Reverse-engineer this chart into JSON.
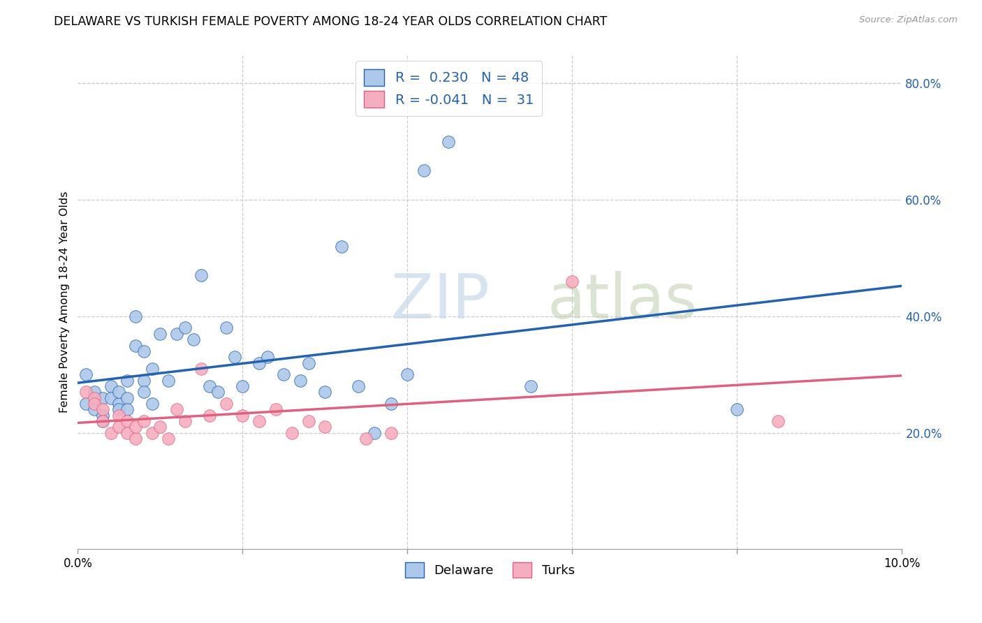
{
  "title": "DELAWARE VS TURKISH FEMALE POVERTY AMONG 18-24 YEAR OLDS CORRELATION CHART",
  "source": "Source: ZipAtlas.com",
  "ylabel": "Female Poverty Among 18-24 Year Olds",
  "xlim": [
    0.0,
    0.1
  ],
  "ylim": [
    0.0,
    0.85
  ],
  "y_ticks_right": [
    0.2,
    0.4,
    0.6,
    0.8
  ],
  "y_tick_labels_right": [
    "20.0%",
    "40.0%",
    "60.0%",
    "80.0%"
  ],
  "legend_r_delaware": "0.230",
  "legend_n_delaware": "48",
  "legend_r_turks": "-0.041",
  "legend_n_turks": "31",
  "color_delaware": "#adc8e8",
  "color_turks": "#f5aec0",
  "color_line_delaware": "#2262b0",
  "color_line_turks": "#e06080",
  "watermark_zip": "ZIP",
  "watermark_atlas": "atlas",
  "del_x": [
    0.001,
    0.001,
    0.002,
    0.002,
    0.003,
    0.003,
    0.003,
    0.004,
    0.004,
    0.005,
    0.005,
    0.005,
    0.006,
    0.006,
    0.006,
    0.007,
    0.007,
    0.008,
    0.008,
    0.008,
    0.009,
    0.009,
    0.01,
    0.011,
    0.012,
    0.013,
    0.014,
    0.015,
    0.016,
    0.017,
    0.018,
    0.019,
    0.02,
    0.022,
    0.023,
    0.025,
    0.027,
    0.028,
    0.03,
    0.032,
    0.034,
    0.036,
    0.038,
    0.04,
    0.042,
    0.045,
    0.055,
    0.08
  ],
  "del_y": [
    0.3,
    0.25,
    0.27,
    0.24,
    0.26,
    0.23,
    0.22,
    0.28,
    0.26,
    0.25,
    0.24,
    0.27,
    0.29,
    0.26,
    0.24,
    0.4,
    0.35,
    0.34,
    0.29,
    0.27,
    0.31,
    0.25,
    0.37,
    0.29,
    0.37,
    0.38,
    0.36,
    0.47,
    0.28,
    0.27,
    0.38,
    0.33,
    0.28,
    0.32,
    0.33,
    0.3,
    0.29,
    0.32,
    0.27,
    0.52,
    0.28,
    0.2,
    0.25,
    0.3,
    0.65,
    0.7,
    0.28,
    0.24
  ],
  "turk_x": [
    0.001,
    0.002,
    0.002,
    0.003,
    0.003,
    0.004,
    0.005,
    0.005,
    0.006,
    0.006,
    0.007,
    0.007,
    0.008,
    0.009,
    0.01,
    0.011,
    0.012,
    0.013,
    0.015,
    0.016,
    0.018,
    0.02,
    0.022,
    0.024,
    0.026,
    0.028,
    0.03,
    0.035,
    0.038,
    0.06,
    0.085
  ],
  "turk_y": [
    0.27,
    0.26,
    0.25,
    0.24,
    0.22,
    0.2,
    0.23,
    0.21,
    0.22,
    0.2,
    0.19,
    0.21,
    0.22,
    0.2,
    0.21,
    0.19,
    0.24,
    0.22,
    0.31,
    0.23,
    0.25,
    0.23,
    0.22,
    0.24,
    0.2,
    0.22,
    0.21,
    0.19,
    0.2,
    0.46,
    0.22
  ]
}
